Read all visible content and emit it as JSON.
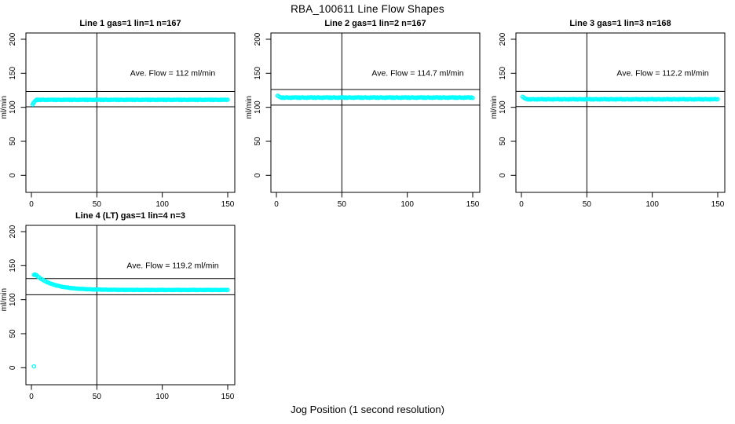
{
  "title": "RBA_100611  Line Flow Shapes",
  "xlabel": "Jog Position (1 second resolution)",
  "point_color": "#00FFFF",
  "axes": {
    "x_ticks": [
      0,
      50,
      100,
      150
    ],
    "y_ticks": [
      0,
      50,
      100,
      150,
      200
    ],
    "xlim": [
      0,
      150
    ],
    "ylim": [
      0,
      200
    ],
    "ylabel": "ml/min"
  },
  "chart_data": [
    {
      "type": "scatter",
      "title": "Line 1 gas=1 lin=1 n=167",
      "n": 167,
      "ave_flow": 112,
      "ave_flow_label": "Ave. Flow =  112  ml/min",
      "ref_lines": [
        123.2,
        100.8
      ],
      "vline": 50,
      "grid": {
        "row": 0,
        "col": 0
      },
      "series": {
        "lead_points": [
          [
            1,
            104
          ],
          [
            1.5,
            106
          ],
          [
            2,
            107.5
          ],
          [
            3,
            109.5
          ]
        ],
        "flat": {
          "from": 4,
          "to": 150,
          "level": 111.0,
          "noise": 0.7
        }
      }
    },
    {
      "type": "scatter",
      "title": "Line 2 gas=1 lin=2 n=167",
      "n": 167,
      "ave_flow": 114.7,
      "ave_flow_label": "Ave. Flow =  114.7  ml/min",
      "ref_lines": [
        126.2,
        103.2
      ],
      "vline": 50,
      "grid": {
        "row": 0,
        "col": 1
      },
      "series": {
        "lead_points": [
          [
            1,
            117
          ],
          [
            2,
            115.8
          ]
        ],
        "flat": {
          "from": 3,
          "to": 150,
          "level": 114.3,
          "noise": 1.0
        }
      }
    },
    {
      "type": "scatter",
      "title": "Line 3 gas=1 lin=3 n=168",
      "n": 168,
      "ave_flow": 112.2,
      "ave_flow_label": "Ave. Flow =  112.2  ml/min",
      "ref_lines": [
        123.4,
        101.0
      ],
      "vline": 50,
      "grid": {
        "row": 0,
        "col": 2
      },
      "series": {
        "lead_points": [
          [
            1,
            115.5
          ],
          [
            2,
            114
          ],
          [
            3,
            112.8
          ]
        ],
        "flat": {
          "from": 4,
          "to": 150,
          "level": 111.8,
          "noise": 0.9
        }
      }
    },
    {
      "type": "scatter",
      "title": "Line 4 (LT) gas=1 lin=4 n=3",
      "n": 3,
      "ave_flow": 119.2,
      "ave_flow_label": "Ave. Flow =  119.2  ml/min",
      "ref_lines": [
        131.1,
        107.3
      ],
      "vline": 50,
      "grid": {
        "row": 1,
        "col": 0
      },
      "series": {
        "lead_points": [
          [
            2,
            136.5
          ],
          [
            2.5,
            137
          ],
          [
            3,
            136.8
          ],
          [
            3.5,
            136.2
          ],
          [
            4,
            135.6
          ]
        ],
        "decay": {
          "from": 4,
          "to": 150,
          "start": 135.6,
          "asymptote": 114.3,
          "tau": 13,
          "noise": 0.45
        },
        "outliers": [
          [
            2,
            2
          ]
        ]
      }
    }
  ]
}
